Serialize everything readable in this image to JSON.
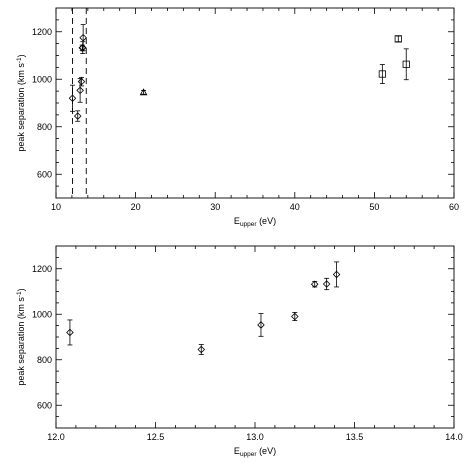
{
  "chart_data": [
    {
      "type": "scatter",
      "title": "",
      "xlabel": "E",
      "xlabel_sub": "upper",
      "xlabel_unit": " (eV)",
      "ylabel": "peak separation (km s",
      "ylabel_sup": "-1",
      "ylabel_end": ")",
      "xlim": [
        10,
        60
      ],
      "ylim": [
        500,
        1300
      ],
      "xticks": [
        "10",
        "20",
        "30",
        "40",
        "50",
        "60"
      ],
      "yticks": [
        "600",
        "800",
        "1000",
        "1200"
      ],
      "vlines": [
        12.07,
        13.8
      ],
      "series": [
        {
          "marker": "diamond",
          "points": [
            {
              "x": 12.07,
              "y": 920,
              "err": 55
            },
            {
              "x": 12.73,
              "y": 845,
              "err": 22
            },
            {
              "x": 13.03,
              "y": 953,
              "err": 50
            },
            {
              "x": 13.2,
              "y": 990,
              "err": 18
            },
            {
              "x": 13.3,
              "y": 1132,
              "err": 12
            },
            {
              "x": 13.36,
              "y": 1133,
              "err": 25
            },
            {
              "x": 13.41,
              "y": 1175,
              "err": 55
            }
          ]
        },
        {
          "marker": "triangle",
          "points": [
            {
              "x": 21.0,
              "y": 945,
              "err": 8
            }
          ]
        },
        {
          "marker": "square",
          "points": [
            {
              "x": 51.0,
              "y": 1022,
              "err": 40
            },
            {
              "x": 53.0,
              "y": 1170,
              "err": 12
            },
            {
              "x": 54.0,
              "y": 1063,
              "err": 65
            }
          ]
        }
      ]
    },
    {
      "type": "scatter",
      "title": "",
      "xlabel": "E",
      "xlabel_sub": "upper",
      "xlabel_unit": " (eV)",
      "ylabel": "peak separation (km s",
      "ylabel_sup": "-1",
      "ylabel_end": ")",
      "xlim": [
        12.0,
        14.0
      ],
      "ylim": [
        500,
        1300
      ],
      "xticks": [
        "12.0",
        "12.5",
        "13.0",
        "13.5",
        "14.0"
      ],
      "yticks": [
        "600",
        "800",
        "1000",
        "1200"
      ],
      "vlines": [],
      "series": [
        {
          "marker": "diamond",
          "points": [
            {
              "x": 12.07,
              "y": 920,
              "err": 55
            },
            {
              "x": 12.73,
              "y": 845,
              "err": 22
            },
            {
              "x": 13.03,
              "y": 953,
              "err": 50
            },
            {
              "x": 13.2,
              "y": 990,
              "err": 18
            },
            {
              "x": 13.3,
              "y": 1132,
              "err": 12
            },
            {
              "x": 13.36,
              "y": 1133,
              "err": 25
            },
            {
              "x": 13.41,
              "y": 1175,
              "err": 55
            }
          ]
        }
      ]
    }
  ]
}
